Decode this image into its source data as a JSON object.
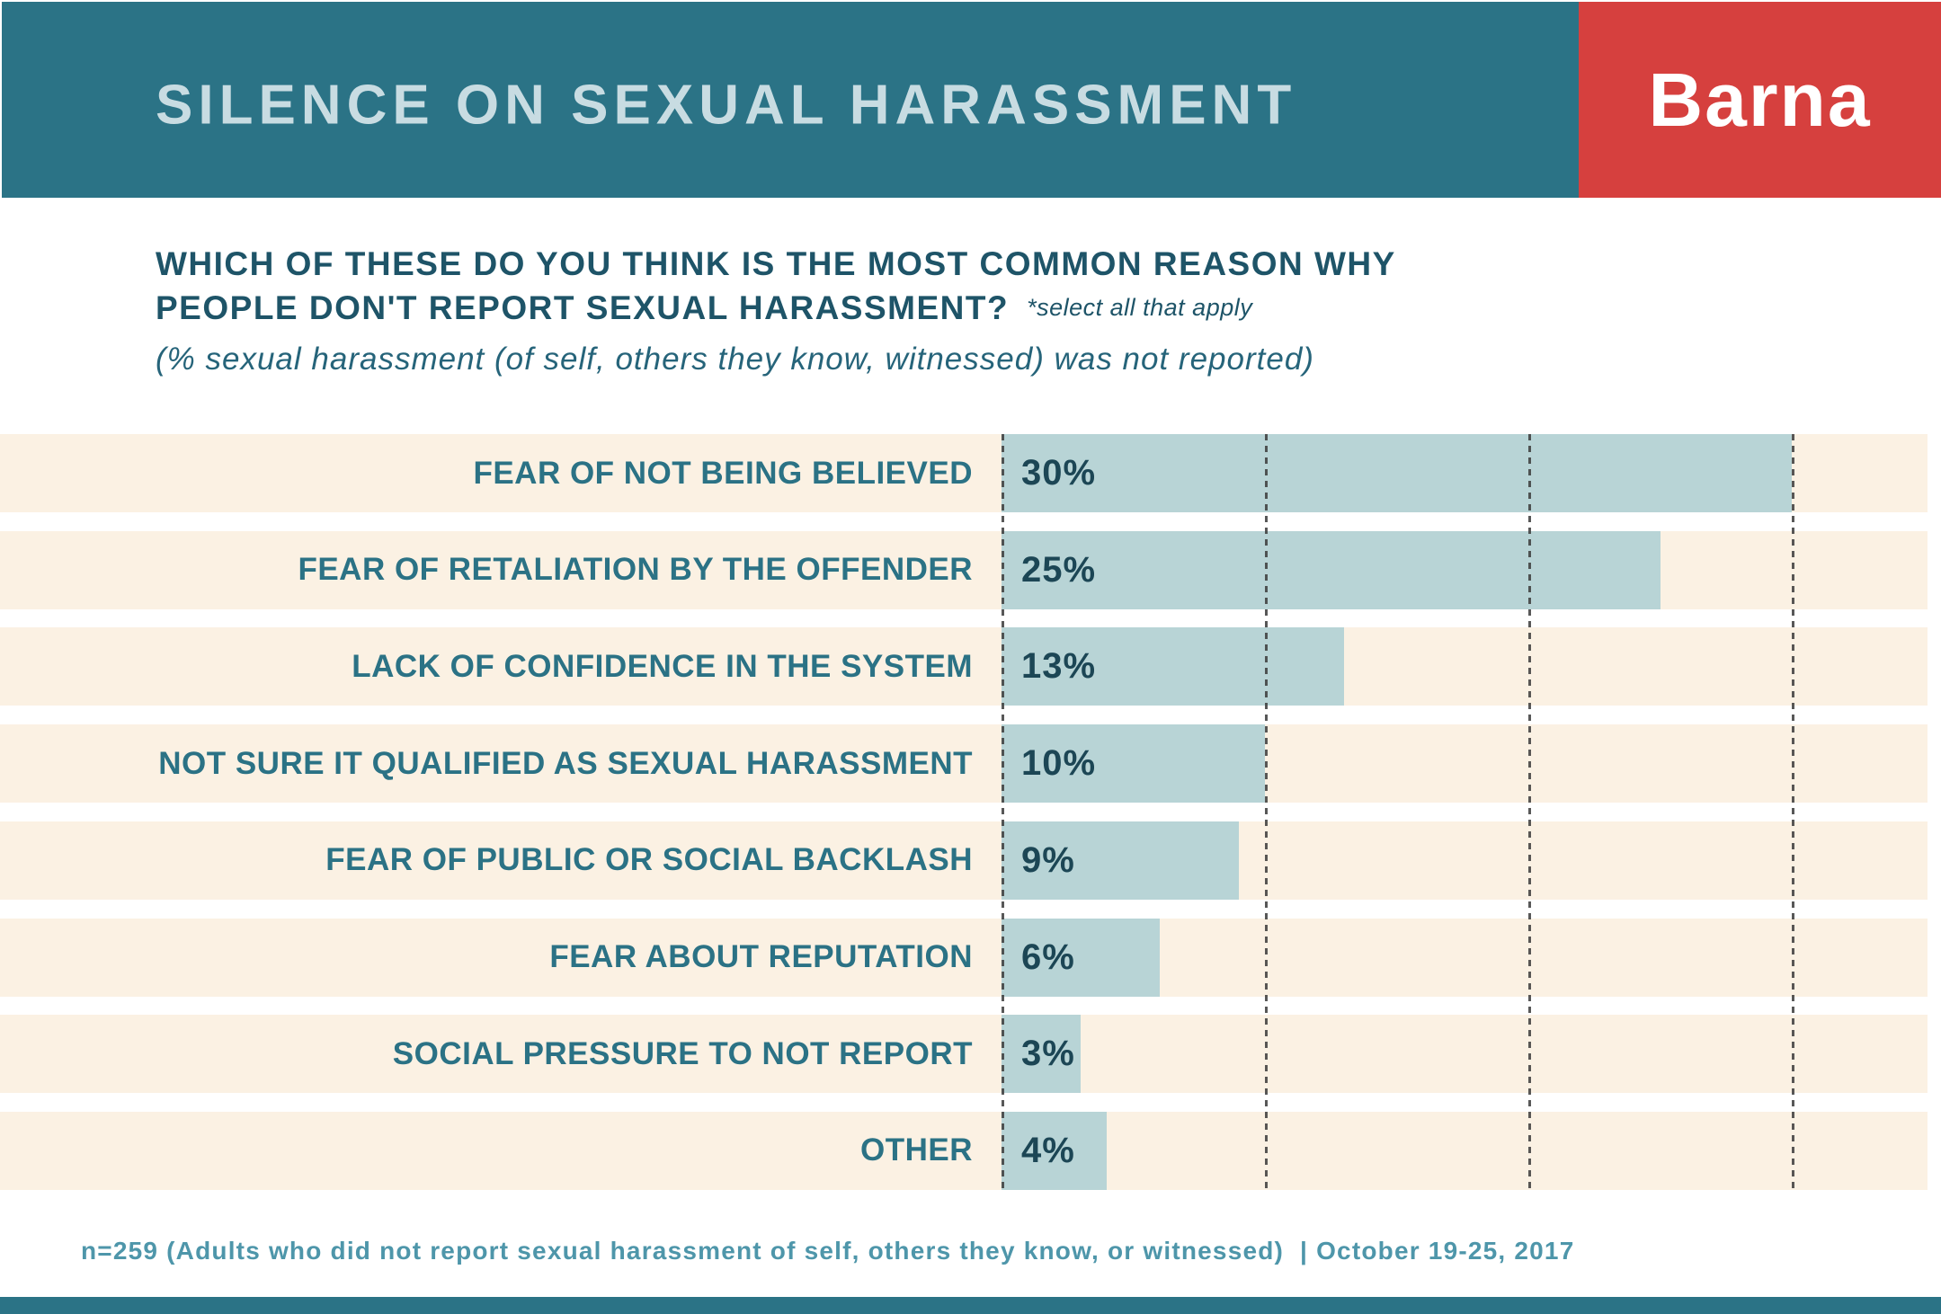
{
  "header": {
    "title": "SILENCE ON SEXUAL HARASSMENT",
    "logo_text": "Barna"
  },
  "question": {
    "line1": "WHICH OF THESE DO YOU THINK IS THE MOST COMMON REASON WHY",
    "line2": "PEOPLE DON'T REPORT SEXUAL HARASSMENT?",
    "note": "*select all that apply",
    "subtitle": "(% sexual harassment (of self, others they know, witnessed) was not reported)"
  },
  "chart_data": {
    "type": "bar",
    "orientation": "horizontal",
    "title": "Which of these do you think is the most common reason why people don't report sexual harassment?",
    "categories": [
      "FEAR OF NOT BEING BELIEVED",
      "FEAR OF RETALIATION BY THE OFFENDER",
      "LACK OF CONFIDENCE IN THE SYSTEM",
      "NOT SURE IT QUALIFIED AS SEXUAL HARASSMENT",
      "FEAR OF PUBLIC OR SOCIAL BACKLASH",
      "FEAR ABOUT REPUTATION",
      "SOCIAL PRESSURE TO NOT REPORT",
      "OTHER"
    ],
    "values": [
      30,
      25,
      13,
      10,
      9,
      6,
      3,
      4
    ],
    "value_labels": [
      "30%",
      "25%",
      "13%",
      "10%",
      "9%",
      "6%",
      "3%",
      "4%"
    ],
    "xlim": [
      0,
      35
    ],
    "gridline_values": [
      0,
      10,
      20,
      30
    ],
    "grid": "dotted-vertical-lines",
    "legend": "none",
    "bar_color": "#b8d4d6",
    "row_band_color": "#fbf1e3"
  },
  "footer": {
    "source": "n=259 (Adults who did not report sexual harassment of self, others they know, or witnessed)",
    "separator": "|",
    "date": "October 19-25, 2017"
  },
  "colors": {
    "header_teal": "#2b7386",
    "logo_red": "#d6403e",
    "title_text": "#c8dce2",
    "question_text": "#1e5468",
    "label_text": "#2b7285",
    "value_text": "#1c4655",
    "footer_text": "#4e96aa"
  }
}
